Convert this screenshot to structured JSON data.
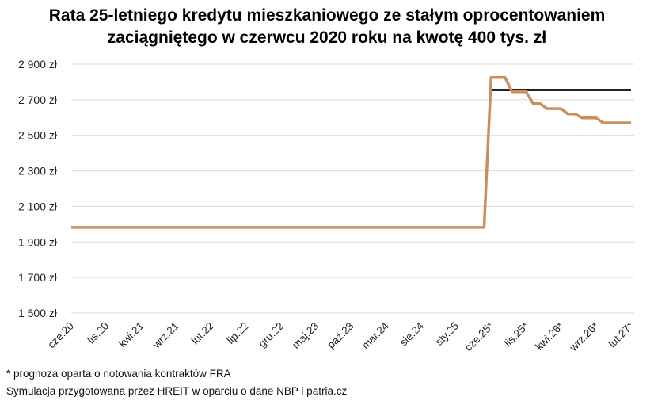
{
  "title_line1": "Rata 25-letniego kredytu mieszkaniowego ze stałym oprocentowaniem",
  "title_line2": "zaciągniętego w czerwcu 2020 roku na kwotę 400 tys. zł",
  "footnote_1": "* prognoza oparta o notowania kontraktów FRA",
  "footnote_2": "Symulacja przygotowana przez HREIT w oparciu o dane NBP i patria.cz",
  "chart_data": {
    "type": "line",
    "title": "Rata 25-letniego kredytu mieszkaniowego ze stałym oprocentowaniem zaciągniętego w czerwcu 2020 roku na kwotę 400 tys. zł",
    "ylim": [
      1500,
      2900
    ],
    "y_ticks": [
      1500,
      1700,
      1900,
      2100,
      2300,
      2500,
      2700,
      2900
    ],
    "y_tick_labels": [
      "1 500 zł",
      "1 700 zł",
      "1 900 zł",
      "2 100 zł",
      "2 300 zł",
      "2 500 zł",
      "2 700 zł",
      "2 900 zł"
    ],
    "x_period": [
      "2020-06",
      "2027-02"
    ],
    "x_tick_labels": [
      {
        "label": "cze.20",
        "date": "2020-06"
      },
      {
        "label": "lis.20",
        "date": "2020-11"
      },
      {
        "label": "kwi.21",
        "date": "2021-04"
      },
      {
        "label": "wrz.21",
        "date": "2021-09"
      },
      {
        "label": "lut.22",
        "date": "2022-02"
      },
      {
        "label": "lip.22",
        "date": "2022-07"
      },
      {
        "label": "gru.22",
        "date": "2022-12"
      },
      {
        "label": "maj.23",
        "date": "2023-05"
      },
      {
        "label": "paź.23",
        "date": "2023-10"
      },
      {
        "label": "mar.24",
        "date": "2024-03"
      },
      {
        "label": "sie.24",
        "date": "2024-08"
      },
      {
        "label": "sty.25",
        "date": "2025-01"
      },
      {
        "label": "cze.25*",
        "date": "2025-06"
      },
      {
        "label": "lis.25*",
        "date": "2025-11"
      },
      {
        "label": "kwi.26*",
        "date": "2026-04"
      },
      {
        "label": "wrz.26*",
        "date": "2026-09"
      },
      {
        "label": "lut.27*",
        "date": "2027-02"
      }
    ],
    "grid": "horizontal",
    "legend": "none",
    "series": [
      {
        "color": "#1f2230",
        "points": [
          {
            "x": "2025-06",
            "y": 2755
          },
          {
            "x": "2027-02",
            "y": 2755
          }
        ]
      },
      {
        "color": "#c98f5f",
        "points": [
          {
            "x": "2020-06",
            "y": 1982
          },
          {
            "x": "2025-05",
            "y": 1982
          },
          {
            "x": "2025-06",
            "y": 2825
          },
          {
            "x": "2025-08",
            "y": 2825
          },
          {
            "x": "2025-09",
            "y": 2745
          },
          {
            "x": "2025-11",
            "y": 2745
          },
          {
            "x": "2025-12",
            "y": 2678
          },
          {
            "x": "2026-01",
            "y": 2678
          },
          {
            "x": "2026-02",
            "y": 2650
          },
          {
            "x": "2026-04",
            "y": 2650
          },
          {
            "x": "2026-05",
            "y": 2620
          },
          {
            "x": "2026-06",
            "y": 2620
          },
          {
            "x": "2026-07",
            "y": 2598
          },
          {
            "x": "2026-09",
            "y": 2598
          },
          {
            "x": "2026-10",
            "y": 2570
          },
          {
            "x": "2027-02",
            "y": 2570
          }
        ]
      }
    ]
  }
}
